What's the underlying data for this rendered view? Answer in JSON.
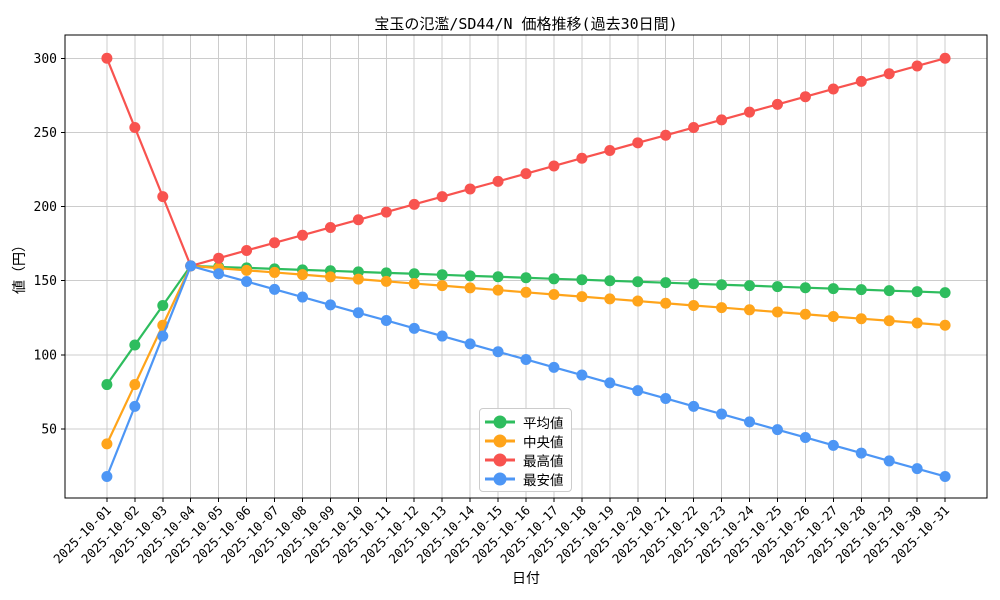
{
  "title": "宝玉の氾濫/SD44/N 価格推移(過去30日間)",
  "xlabel": "日付",
  "ylabel": "値（円）",
  "chart_data": {
    "type": "line",
    "title": "宝玉の氾濫/SD44/N 価格推移(過去30日間)",
    "xlabel": "日付",
    "ylabel": "値（円）",
    "grid": true,
    "legend_position": "inside lower center",
    "ylim": [
      3.5,
      315.7
    ],
    "y_ticks": [
      50,
      100,
      150,
      200,
      250,
      300
    ],
    "x": [
      "2025-10-01",
      "2025-10-02",
      "2025-10-03",
      "2025-10-04",
      "2025-10-05",
      "2025-10-06",
      "2025-10-07",
      "2025-10-08",
      "2025-10-09",
      "2025-10-10",
      "2025-10-11",
      "2025-10-12",
      "2025-10-13",
      "2025-10-14",
      "2025-10-15",
      "2025-10-16",
      "2025-10-17",
      "2025-10-18",
      "2025-10-19",
      "2025-10-20",
      "2025-10-21",
      "2025-10-22",
      "2025-10-23",
      "2025-10-24",
      "2025-10-25",
      "2025-10-26",
      "2025-10-27",
      "2025-10-28",
      "2025-10-29",
      "2025-10-30",
      "2025-10-31"
    ],
    "series": [
      {
        "name": "平均値",
        "color": "#2EBD5E",
        "values": [
          80,
          106.7,
          133.3,
          160,
          159.3,
          158.7,
          158,
          157.3,
          156.7,
          156,
          155.3,
          154.7,
          154,
          153.3,
          152.7,
          152,
          151.3,
          150.7,
          150,
          149.3,
          148.7,
          148,
          147.3,
          146.7,
          146,
          145.3,
          144.7,
          144,
          143.3,
          142.7,
          142
        ]
      },
      {
        "name": "中央値",
        "color": "#FFA41A",
        "values": [
          40,
          80,
          120,
          160,
          158.5,
          157,
          155.6,
          154.1,
          152.6,
          151.1,
          149.6,
          148.1,
          146.7,
          145.2,
          143.7,
          142.2,
          140.7,
          139.3,
          137.8,
          136.3,
          134.8,
          133.3,
          131.9,
          130.4,
          128.9,
          127.4,
          125.9,
          124.4,
          123,
          121.5,
          120
        ]
      },
      {
        "name": "最高値",
        "color": "#F8534F",
        "values": [
          300,
          253.3,
          206.7,
          160,
          165.2,
          170.4,
          175.6,
          180.7,
          185.9,
          191.1,
          196.3,
          201.5,
          206.7,
          211.9,
          217,
          222.2,
          227.4,
          232.6,
          237.8,
          243,
          248.1,
          253.3,
          258.5,
          263.7,
          268.9,
          274.1,
          279.3,
          284.4,
          289.6,
          294.8,
          300
        ]
      },
      {
        "name": "最安値",
        "color": "#4D96F5",
        "values": [
          18,
          65.3,
          112.7,
          160,
          154.7,
          149.5,
          144.2,
          139,
          133.7,
          128.4,
          123.2,
          117.9,
          112.7,
          107.4,
          102.1,
          96.9,
          91.6,
          86.4,
          81.1,
          75.9,
          70.6,
          65.3,
          60.1,
          54.8,
          49.6,
          44.3,
          39,
          33.8,
          28.5,
          23.3,
          18
        ]
      }
    ],
    "style": {
      "grid_color": "#cccccc",
      "spine_color": "#000000",
      "background": "#ffffff",
      "line_width": 2.2,
      "marker_radius": 5.5
    }
  }
}
